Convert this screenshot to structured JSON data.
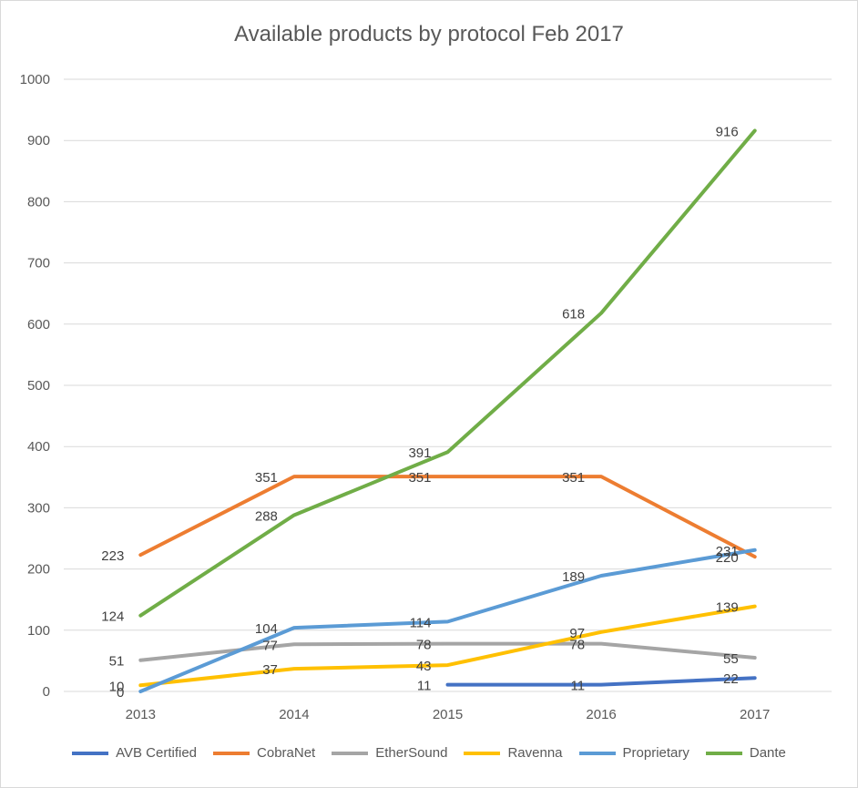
{
  "chart_data": {
    "type": "line",
    "title": "Available products by protocol Feb 2017",
    "categories": [
      "2013",
      "2014",
      "2015",
      "2016",
      "2017"
    ],
    "ylim": [
      0,
      1000
    ],
    "yticks": [
      0,
      100,
      200,
      300,
      400,
      500,
      600,
      700,
      800,
      900,
      1000
    ],
    "grid": true,
    "legend": "bottom",
    "series": [
      {
        "name": "AVB Certified",
        "color": "#4472c4",
        "values": [
          null,
          null,
          11,
          11,
          22
        ]
      },
      {
        "name": "CobraNet",
        "color": "#ed7d31",
        "values": [
          223,
          351,
          351,
          351,
          220
        ]
      },
      {
        "name": "EtherSound",
        "color": "#a5a5a5",
        "values": [
          51,
          77,
          78,
          78,
          55
        ]
      },
      {
        "name": "Ravenna",
        "color": "#ffc000",
        "values": [
          10,
          37,
          43,
          97,
          139
        ]
      },
      {
        "name": "Proprietary",
        "color": "#5b9bd5",
        "values": [
          0,
          104,
          114,
          189,
          231
        ]
      },
      {
        "name": "Dante",
        "color": "#70ad47",
        "values": [
          124,
          288,
          391,
          618,
          916
        ]
      }
    ]
  }
}
